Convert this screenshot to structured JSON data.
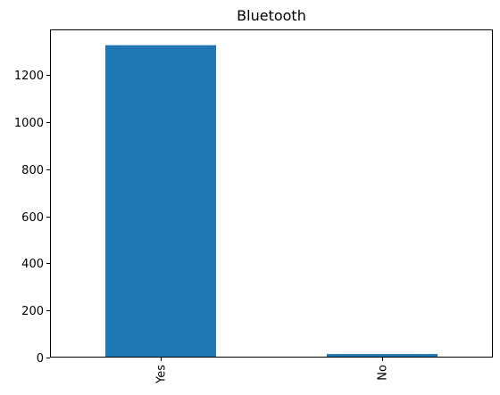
{
  "chart_data": {
    "type": "bar",
    "title": "Bluetooth",
    "categories": [
      "Yes",
      "No"
    ],
    "values": [
      1328,
      15
    ],
    "xlabel": "",
    "ylabel": "",
    "ylim": [
      0,
      1395
    ],
    "yticks": [
      0,
      200,
      400,
      600,
      800,
      1000,
      1200
    ],
    "grid": false,
    "legend": "none",
    "bar_color": "#1f77b4"
  }
}
